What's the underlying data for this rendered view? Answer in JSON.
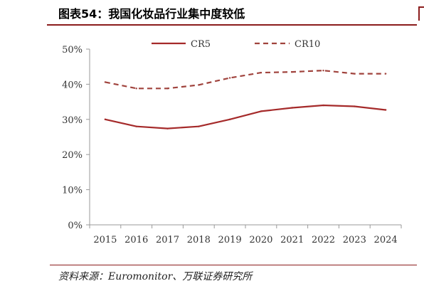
{
  "header": {
    "title": "图表54：我国化妆品行业集中度较低"
  },
  "footer": {
    "source": "资料来源：Euromonitor、万联证券研究所"
  },
  "colors": {
    "accent": "#8b1c1c",
    "cr5": "#a52a2a",
    "cr10": "#a0433d"
  },
  "chart_data": {
    "type": "line",
    "title": "",
    "xlabel": "",
    "ylabel": "",
    "categories": [
      "2015",
      "2016",
      "2017",
      "2018",
      "2019",
      "2020",
      "2021",
      "2022",
      "2023",
      "2024"
    ],
    "y_ticks": [
      "0%",
      "10%",
      "20%",
      "30%",
      "40%",
      "50%"
    ],
    "ylim": [
      0,
      50
    ],
    "grid": false,
    "legend_position": "top",
    "series": [
      {
        "name": "CR5",
        "style": "solid",
        "values": [
          30.0,
          28.0,
          27.4,
          28.0,
          30.0,
          32.3,
          33.3,
          34.0,
          33.7,
          32.7
        ]
      },
      {
        "name": "CR10",
        "style": "dashed",
        "values": [
          40.6,
          38.8,
          38.8,
          39.8,
          41.8,
          43.3,
          43.5,
          43.9,
          43.0,
          43.0
        ]
      }
    ]
  }
}
